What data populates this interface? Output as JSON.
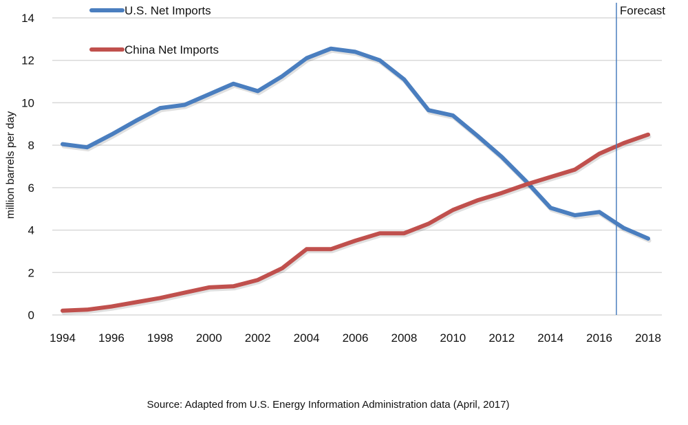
{
  "chart_data": {
    "type": "line",
    "title": "",
    "xlabel": "",
    "ylabel": "million barrels per day",
    "ylim": [
      0,
      14
    ],
    "xlim": [
      1994,
      2018
    ],
    "yticks": [
      0,
      2,
      4,
      6,
      8,
      10,
      12,
      14
    ],
    "xticks": [
      1994,
      1996,
      1998,
      2000,
      2002,
      2004,
      2006,
      2008,
      2010,
      2012,
      2014,
      2016,
      2018
    ],
    "grid": "horizontal",
    "legend_position": "top-left",
    "x": [
      1994,
      1995,
      1996,
      1997,
      1998,
      1999,
      2000,
      2001,
      2002,
      2003,
      2004,
      2005,
      2006,
      2007,
      2008,
      2009,
      2010,
      2011,
      2012,
      2013,
      2014,
      2015,
      2016,
      2017,
      2018
    ],
    "series": [
      {
        "name": "U.S. Net Imports",
        "color": "#4a7ebf",
        "values": [
          8.05,
          7.9,
          8.5,
          9.15,
          9.75,
          9.9,
          10.4,
          10.9,
          10.55,
          11.25,
          12.1,
          12.55,
          12.4,
          12.0,
          11.1,
          9.65,
          9.4,
          8.45,
          7.45,
          6.3,
          5.05,
          4.7,
          4.85,
          4.1,
          3.6
        ]
      },
      {
        "name": "China Net Imports",
        "color": "#c0504d",
        "values": [
          0.2,
          0.25,
          0.4,
          0.6,
          0.8,
          1.05,
          1.3,
          1.35,
          1.65,
          2.2,
          3.1,
          3.1,
          3.5,
          3.85,
          3.85,
          4.3,
          4.95,
          5.4,
          5.75,
          6.15,
          6.5,
          6.85,
          7.6,
          8.1,
          8.5
        ]
      }
    ],
    "annotations": [
      {
        "type": "vertical-line",
        "x": 2016.7,
        "label": "Forecast",
        "color": "#4a7ebf"
      }
    ],
    "source": "Source: Adapted from U.S. Energy Information Administration data (April, 2017)"
  }
}
